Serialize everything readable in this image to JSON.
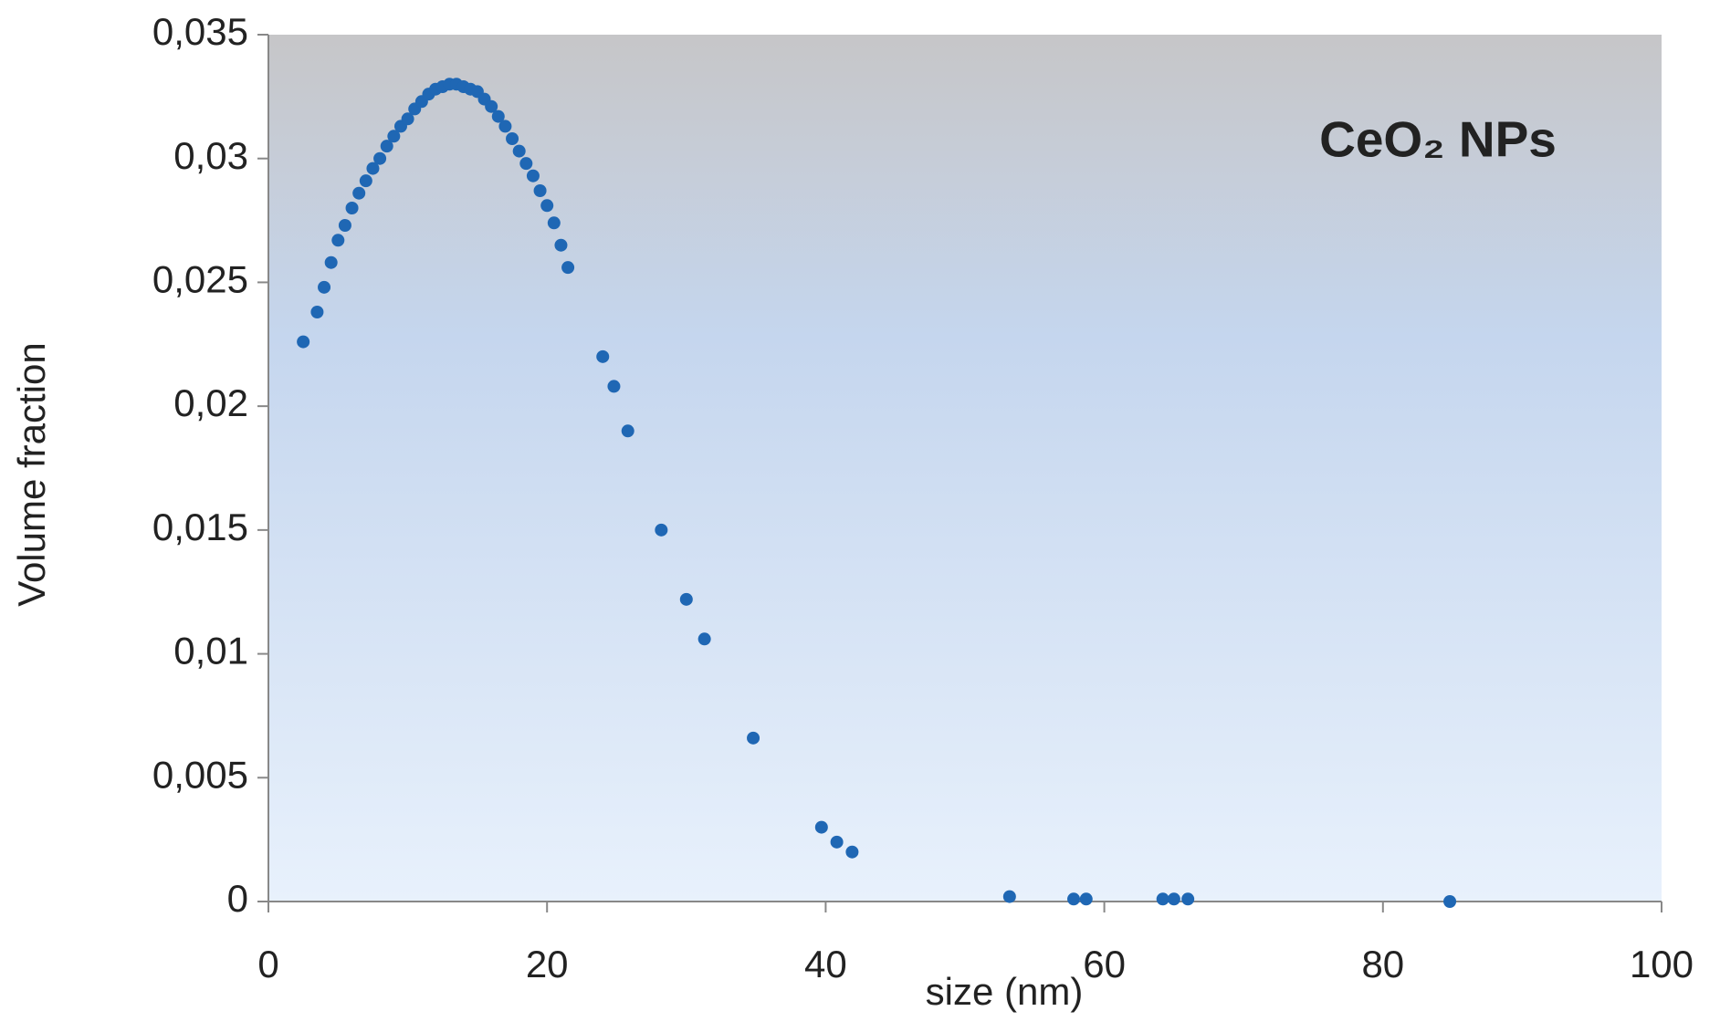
{
  "chart_data": {
    "type": "scatter",
    "annotation": "CeO₂ NPs",
    "xlabel": "size (nm)",
    "ylabel": "Volume fraction",
    "color": "#1f67b4",
    "x": [
      2.5,
      3.5,
      4,
      4.5,
      5,
      5.5,
      6,
      6.5,
      7,
      7.5,
      8,
      8.5,
      9,
      9.5,
      10,
      10.5,
      11,
      11.5,
      12,
      12.5,
      13,
      13.5,
      14,
      14.5,
      15,
      15.5,
      16,
      16.5,
      17,
      17.5,
      18,
      18.5,
      19,
      19.5,
      20,
      20.5,
      21,
      21.5,
      24,
      24.8,
      25.8,
      28.2,
      30,
      31.3,
      34.8,
      39.7,
      40.8,
      41.9,
      53.2,
      57.8,
      58.7,
      64.2,
      65,
      66,
      84.8
    ],
    "values": [
      0.0226,
      0.0238,
      0.0248,
      0.0258,
      0.0267,
      0.0273,
      0.028,
      0.0286,
      0.0291,
      0.0296,
      0.03,
      0.0305,
      0.0309,
      0.0313,
      0.0316,
      0.032,
      0.0323,
      0.0326,
      0.0328,
      0.0329,
      0.033,
      0.033,
      0.0329,
      0.0328,
      0.0327,
      0.0324,
      0.0321,
      0.0317,
      0.0313,
      0.0308,
      0.0303,
      0.0298,
      0.0293,
      0.0287,
      0.0281,
      0.0274,
      0.0265,
      0.0256,
      0.022,
      0.0208,
      0.019,
      0.015,
      0.0122,
      0.0106,
      0.0066,
      0.003,
      0.0024,
      0.002,
      0.0002,
      0.0001,
      0.0001,
      0.0001,
      0.0001,
      0.0001,
      0
    ],
    "xlim": [
      0,
      100
    ],
    "xticks": [
      0,
      20,
      40,
      60,
      80,
      100
    ],
    "ylim": [
      0,
      0.035
    ],
    "yticks": [
      0,
      {
        "value": 0.005,
        "label": "0,005"
      },
      {
        "value": 0.01,
        "label": "0,01"
      },
      {
        "value": 0.015,
        "label": "0,015"
      },
      {
        "value": 0.02,
        "label": "0,02"
      },
      {
        "value": 0.025,
        "label": "0,025"
      },
      {
        "value": 0.03,
        "label": "0,03"
      },
      {
        "value": 0.035,
        "label": "0,035"
      }
    ]
  }
}
